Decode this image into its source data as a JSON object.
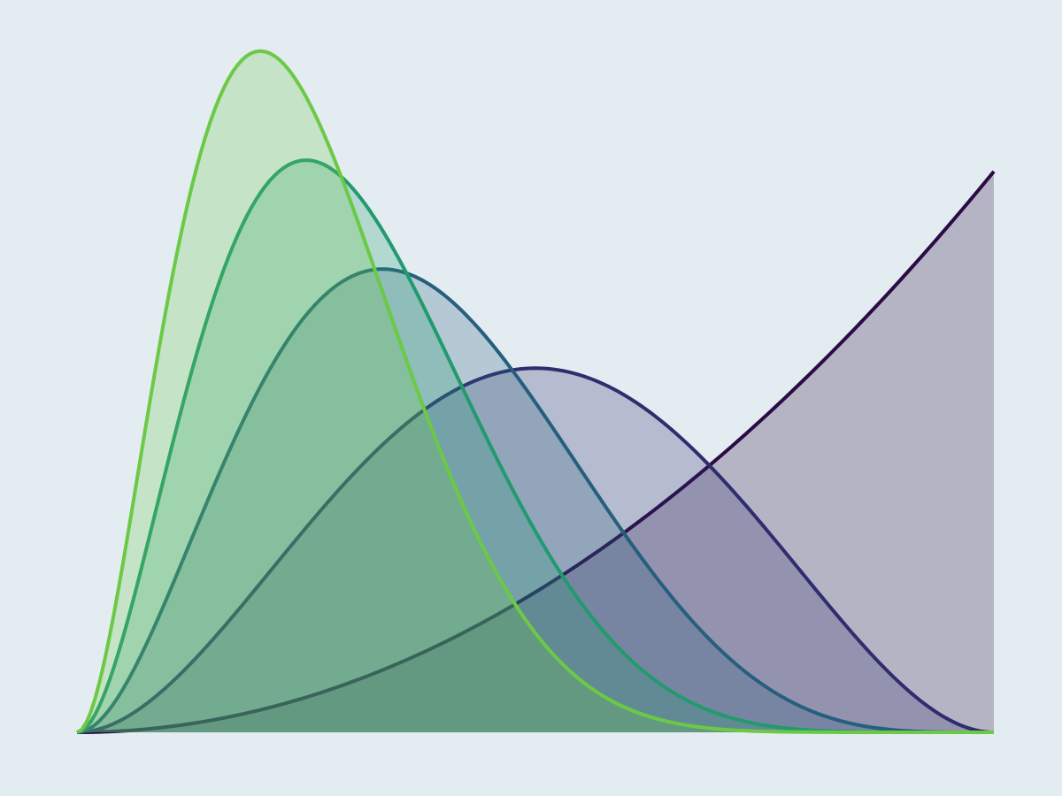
{
  "page": {
    "background": "#e3ecf0"
  },
  "chart_data": {
    "type": "area",
    "title": "",
    "xlabel": "",
    "ylabel": "",
    "xlim": [
      0,
      1
    ],
    "ylim": [
      0,
      1
    ],
    "grid": false,
    "axes_visible": false,
    "legend": "none",
    "fill_opacity": 0.25,
    "series": [
      {
        "color": "#2a0b45",
        "shape_params": [
          3,
          1
        ],
        "peak_x": 1.0,
        "peak_y": 0.83
      },
      {
        "color": "#2f2d6e",
        "shape_params": [
          3,
          3
        ],
        "peak_x": 0.47,
        "peak_y": 0.535
      },
      {
        "color": "#265f7d",
        "shape_params": [
          3,
          5
        ],
        "peak_x": 0.3,
        "peak_y": 0.675
      },
      {
        "color": "#219a6e",
        "shape_params": [
          3,
          7
        ],
        "peak_x": 0.225,
        "peak_y": 0.835
      },
      {
        "color": "#6cc946",
        "shape_params": [
          3,
          9
        ],
        "peak_x": 0.18,
        "peak_y": 0.995
      }
    ]
  }
}
